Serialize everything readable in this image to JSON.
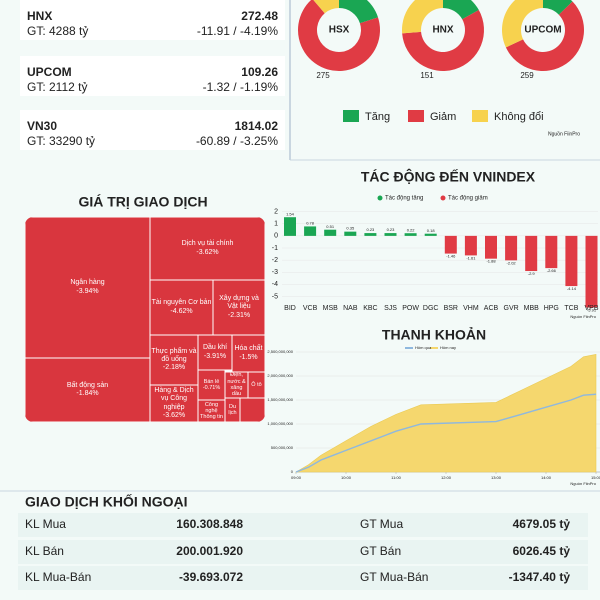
{
  "indices": [
    {
      "name": "HNX",
      "gt": "GT: 4288 tỷ",
      "value": "272.48",
      "change": "-11.91 / -4.19%"
    },
    {
      "name": "UPCOM",
      "gt": "GT: 2112 tỷ",
      "value": "109.26",
      "change": "-1.32 / -1.19%"
    },
    {
      "name": "VN30",
      "gt": "GT: 33290 tỷ",
      "value": "1814.02",
      "change": "-60.89 / -3.25%"
    }
  ],
  "chart_data": [
    {
      "type": "donut",
      "categories": [
        "Tăng",
        "Giảm",
        "Không đổi"
      ],
      "colors": [
        "#1aa653",
        "#e03b44",
        "#f7d24e"
      ],
      "source": "Nguồn FiinPro",
      "charts": [
        {
          "name": "HSX",
          "values": [
            80,
            275,
            45
          ]
        },
        {
          "name": "HNX",
          "values": [
            45,
            151,
            70
          ]
        },
        {
          "name": "UPCOM",
          "values": [
            60,
            259,
            150
          ]
        }
      ]
    },
    {
      "type": "bar",
      "title": "TÁC ĐỘNG ĐẾN VNINDEX",
      "categories": [
        "BID",
        "VCB",
        "MSB",
        "NAB",
        "KBC",
        "SJS",
        "POW",
        "DGC",
        "BSR",
        "VHM",
        "ACB",
        "GVR",
        "MBB",
        "HPG",
        "TCB",
        "VPB"
      ],
      "values": [
        1.54,
        0.78,
        0.51,
        0.35,
        0.23,
        0.23,
        0.22,
        0.18,
        -1.46,
        -1.61,
        -1.88,
        -2.02,
        -2.9,
        -2.66,
        -4.14,
        -5.91
      ],
      "legend": [
        {
          "name": "Tác động tăng",
          "color": "#1aa653"
        },
        {
          "name": "Tác động giảm",
          "color": "#e03b44"
        }
      ],
      "ylim": [
        -5.9,
        2.3
      ],
      "yticks": [
        2,
        1,
        0,
        -1,
        -2,
        -3,
        -4,
        -5
      ],
      "grid": true,
      "source": "Nguồn FiinPro"
    },
    {
      "type": "area",
      "title": "THANH KHOẢN",
      "x": [
        9,
        9.25,
        9.5,
        9.75,
        10,
        10.5,
        11,
        11.5,
        13,
        13.5,
        14,
        14.5,
        14.75,
        15
      ],
      "series": [
        {
          "name": "Hôm nay",
          "color": "#f5d76e",
          "style": "area",
          "values": [
            0,
            150000000,
            350000000,
            500000000,
            650000000,
            950000000,
            1200000000,
            1400000000,
            1450000000,
            1700000000,
            1950000000,
            2200000000,
            2400000000,
            2450000000
          ]
        },
        {
          "name": "Hôm qua",
          "color": "#8fb8de",
          "style": "line",
          "values": [
            0,
            100000000,
            250000000,
            350000000,
            450000000,
            650000000,
            850000000,
            1000000000,
            1050000000,
            1200000000,
            1350000000,
            1500000000,
            1600000000,
            1620000000
          ]
        }
      ],
      "xlim": [
        9,
        15
      ],
      "xticks": [
        {
          "value": 9,
          "label": "09:00"
        },
        {
          "value": 10,
          "label": "10:00"
        },
        {
          "value": 11,
          "label": "11:00"
        },
        {
          "value": 12,
          "label": "12:00"
        },
        {
          "value": 13,
          "label": "13:00"
        },
        {
          "value": 14,
          "label": "14:00"
        },
        {
          "value": 15,
          "label": "15:00"
        }
      ],
      "ylim": [
        0,
        2500000000
      ],
      "yticks": [
        0,
        {
          "value": 500000000,
          "label": "500,000,000"
        },
        {
          "value": 1000000000,
          "label": "1,000,000,000"
        },
        {
          "value": 1500000000,
          "label": "1,500,000,000"
        },
        {
          "value": 2000000000,
          "label": "2,000,000,000"
        },
        {
          "value": 2500000000,
          "label": "2,500,000,000"
        }
      ],
      "grid": true,
      "source": "Nguồn FiinPro"
    },
    {
      "type": "treemap",
      "title": "GIÁ TRỊ GIAO DỊCH",
      "color": "#d9363e",
      "tiles": [
        {
          "name": "Ngân hàng",
          "change": "-3.94%"
        },
        {
          "name": "Bất động sản",
          "change": "-1.84%"
        },
        {
          "name": "Dịch vụ tài chính",
          "change": "-3.62%"
        },
        {
          "name": "Tài nguyên Cơ bản",
          "change": "-4.62%"
        },
        {
          "name": "Xây dựng và Vật liệu",
          "change": "-2.31%"
        },
        {
          "name": "Thực phẩm và đồ uống",
          "change": "-2.18%"
        },
        {
          "name": "Dầu khí",
          "change": "-3.91%"
        },
        {
          "name": "Hóa chất",
          "change": "-1.5%"
        },
        {
          "name": "Hàng & Dịch vụ Công nghiệp",
          "change": "-3.62%"
        },
        {
          "name": "Bán lẻ",
          "change": "-0.71%"
        },
        {
          "name": "Điện, nước & xăng dầu"
        },
        {
          "name": "Ô tô"
        },
        {
          "name": "Công nghệ Thông tin"
        },
        {
          "name": "Du lịch"
        }
      ]
    }
  ],
  "foreign": {
    "title": "GIAO DỊCH KHỐI NGOẠI",
    "rows": [
      [
        "KL Mua",
        "160.308.848",
        "GT Mua",
        "4679.05 tỷ"
      ],
      [
        "KL Bán",
        "200.001.920",
        "GT Bán",
        "6026.45 tỷ"
      ],
      [
        "KL Mua-Bán",
        "-39.693.072",
        "GT Mua-Bán",
        "-1347.40 tỷ"
      ]
    ]
  }
}
